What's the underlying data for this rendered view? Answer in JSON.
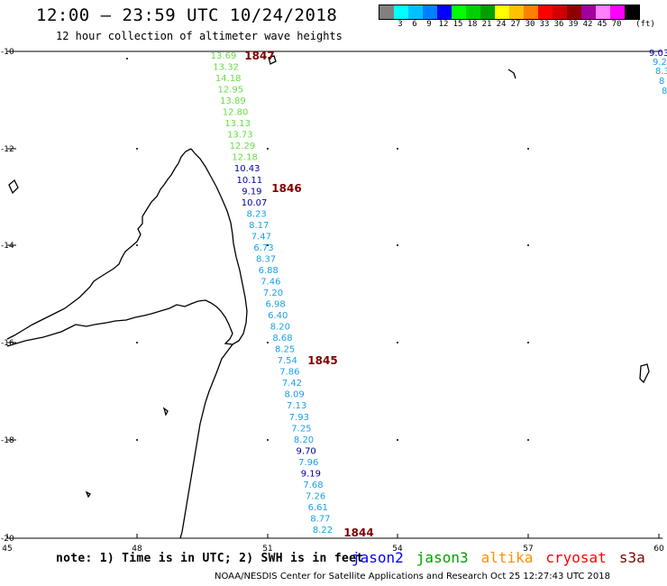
{
  "header": {
    "title": "12:00 – 23:59 UTC 10/24/2018",
    "subtitle": "12 hour collection of altimeter wave heights"
  },
  "legend": {
    "unit": "(ft)",
    "bins": [
      {
        "color": "#808080",
        "label": ""
      },
      {
        "color": "#00ffff",
        "label": "3"
      },
      {
        "color": "#00c0ff",
        "label": "6"
      },
      {
        "color": "#0080ff",
        "label": "9"
      },
      {
        "color": "#0000ff",
        "label": "12"
      },
      {
        "color": "#00ff00",
        "label": "15"
      },
      {
        "color": "#00d000",
        "label": "18"
      },
      {
        "color": "#00a000",
        "label": "21"
      },
      {
        "color": "#ffff00",
        "label": "24"
      },
      {
        "color": "#ffc000",
        "label": "27"
      },
      {
        "color": "#ff8000",
        "label": "30"
      },
      {
        "color": "#ff0000",
        "label": "33"
      },
      {
        "color": "#d00000",
        "label": "36"
      },
      {
        "color": "#900000",
        "label": "39"
      },
      {
        "color": "#a000a0",
        "label": "42"
      },
      {
        "color": "#ff80ff",
        "label": "45"
      },
      {
        "color": "#ff00ff",
        "label": "70"
      },
      {
        "color": "#000000",
        "label": ""
      }
    ]
  },
  "axes": {
    "lon_labels": [
      "45",
      "48",
      "51",
      "54",
      "57",
      "60"
    ],
    "lat_labels": [
      "-10",
      "-12",
      "-14",
      "-16",
      "-18",
      "-20"
    ]
  },
  "colors": {
    "light_green": "#66dd44",
    "cyan_blue": "#1aa0e6",
    "navy": "#0000aa",
    "time_label": "#800000",
    "coast": "#000000"
  },
  "track": {
    "readings": [
      {
        "v": "13.69",
        "c": "light_green"
      },
      {
        "v": "13.32",
        "c": "light_green"
      },
      {
        "v": "14.18",
        "c": "light_green"
      },
      {
        "v": "12.95",
        "c": "light_green"
      },
      {
        "v": "13.89",
        "c": "light_green"
      },
      {
        "v": "12.80",
        "c": "light_green"
      },
      {
        "v": "13.13",
        "c": "light_green"
      },
      {
        "v": "13.73",
        "c": "light_green"
      },
      {
        "v": "12.29",
        "c": "light_green"
      },
      {
        "v": "12.18",
        "c": "light_green"
      },
      {
        "v": "10.43",
        "c": "navy"
      },
      {
        "v": "10.11",
        "c": "navy"
      },
      {
        "v": "9.19",
        "c": "navy"
      },
      {
        "v": "10.07",
        "c": "navy"
      },
      {
        "v": "8.23",
        "c": "cyan_blue"
      },
      {
        "v": "8.17",
        "c": "cyan_blue"
      },
      {
        "v": "7.47",
        "c": "cyan_blue"
      },
      {
        "v": "6.73",
        "c": "cyan_blue"
      },
      {
        "v": "8.37",
        "c": "cyan_blue"
      },
      {
        "v": "6.88",
        "c": "cyan_blue"
      },
      {
        "v": "7.46",
        "c": "cyan_blue"
      },
      {
        "v": "7.20",
        "c": "cyan_blue"
      },
      {
        "v": "6.98",
        "c": "cyan_blue"
      },
      {
        "v": "6.40",
        "c": "cyan_blue"
      },
      {
        "v": "8.20",
        "c": "cyan_blue"
      },
      {
        "v": "8.68",
        "c": "cyan_blue"
      },
      {
        "v": "8.25",
        "c": "cyan_blue"
      },
      {
        "v": "7.54",
        "c": "cyan_blue"
      },
      {
        "v": "7.86",
        "c": "cyan_blue"
      },
      {
        "v": "7.42",
        "c": "cyan_blue"
      },
      {
        "v": "8.09",
        "c": "cyan_blue"
      },
      {
        "v": "7.13",
        "c": "cyan_blue"
      },
      {
        "v": "7.93",
        "c": "cyan_blue"
      },
      {
        "v": "7.25",
        "c": "cyan_blue"
      },
      {
        "v": "8.20",
        "c": "cyan_blue"
      },
      {
        "v": "9.70",
        "c": "navy"
      },
      {
        "v": "7.96",
        "c": "cyan_blue"
      },
      {
        "v": "9.19",
        "c": "navy"
      },
      {
        "v": "7.68",
        "c": "cyan_blue"
      },
      {
        "v": "7.26",
        "c": "cyan_blue"
      },
      {
        "v": "6.61",
        "c": "cyan_blue"
      },
      {
        "v": "8.77",
        "c": "cyan_blue"
      },
      {
        "v": "8.22",
        "c": "cyan_blue"
      }
    ],
    "time_labels": [
      "1847",
      "1846",
      "1845",
      "1844"
    ],
    "edge_readings": [
      {
        "v": "9.03",
        "c": "navy"
      },
      {
        "v": "9.2",
        "c": "cyan_blue"
      },
      {
        "v": "8.3",
        "c": "cyan_blue"
      },
      {
        "v": "8",
        "c": "cyan_blue"
      },
      {
        "v": "8",
        "c": "cyan_blue"
      }
    ]
  },
  "footer": {
    "note": "note: 1) Time is in UTC; 2) SWH is in feet",
    "satellites": [
      {
        "name": "jason2",
        "color": "#0000ff"
      },
      {
        "name": "jason3",
        "color": "#00a000"
      },
      {
        "name": "altika",
        "color": "#ff9000"
      },
      {
        "name": "cryosat",
        "color": "#ff0000"
      },
      {
        "name": "s3a",
        "color": "#800000"
      }
    ],
    "credit": "NOAA/NESDIS Center for Satellite Applications and Research   Oct 25 12:27:43 UTC 2018"
  }
}
